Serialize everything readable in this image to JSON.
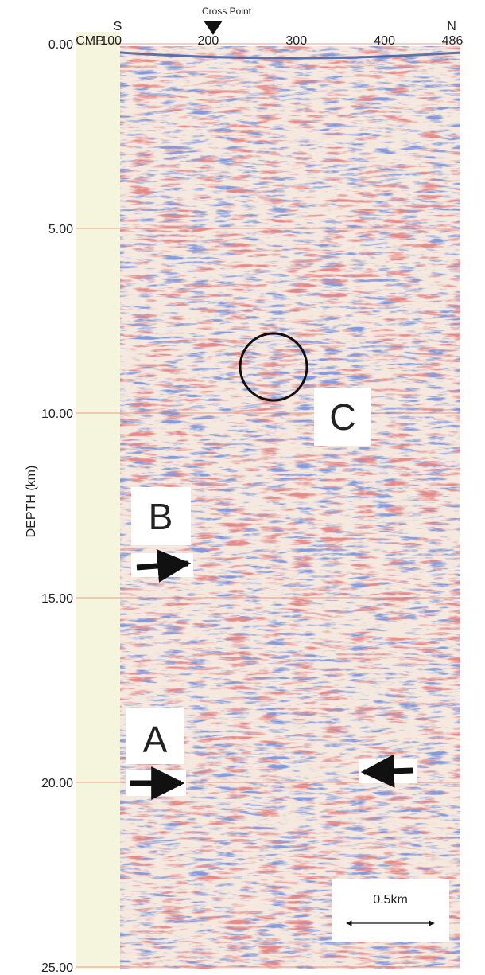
{
  "chart_data": {
    "type": "seismic-section",
    "x_label": "CMP",
    "y_label": "DEPTH (km)",
    "xlim": [
      100,
      486
    ],
    "xticks": [
      100,
      200,
      300,
      400,
      486
    ],
    "ylim": [
      0,
      25
    ],
    "yticks": [
      {
        "value": 0,
        "label": "0.00"
      },
      {
        "value": 5,
        "label": "5.00"
      },
      {
        "value": 10,
        "label": "10.00"
      },
      {
        "value": 15,
        "label": "15.00"
      },
      {
        "value": 20,
        "label": "20.00"
      },
      {
        "value": 25,
        "label": "25.00"
      }
    ],
    "grid": true,
    "left_end_label": "S",
    "right_end_label": "N",
    "cross_point": {
      "label": "Cross Point"
    },
    "annotations": [
      "A",
      "B",
      "C"
    ],
    "scale_bar": "0.5km"
  }
}
